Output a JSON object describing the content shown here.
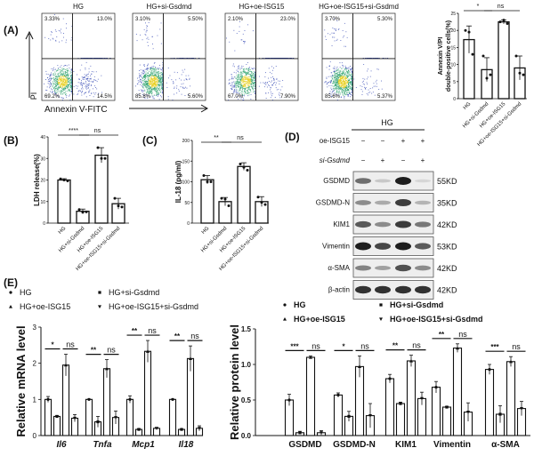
{
  "panels": {
    "A": "(A)",
    "B": "(B)",
    "C": "(C)",
    "D": "(D)",
    "E": "(E)"
  },
  "groups": [
    "HG",
    "HG+si-Gsdmd",
    "HG+oe-ISG15",
    "HG+oe-ISG15+si-Gsdmd"
  ],
  "colors": {
    "dot_low": "#2b3fb0",
    "dot_mid": "#2aa06a",
    "dot_high": "#e8d020",
    "bar_fill": "#ffffff",
    "stroke": "#111111"
  },
  "chart_data": [
    {
      "id": "A-flow",
      "type": "scatter",
      "xlabel": "Annexin V-FITC",
      "ylabel": "PI",
      "plots": [
        {
          "title": "HG",
          "quadrants": {
            "UL": "3.33%",
            "UR": "13.0%",
            "LL": "69.2%",
            "LR": "14.5%"
          },
          "q_values": [
            3.33,
            13.0,
            69.2,
            14.5
          ]
        },
        {
          "title": "HG+si-Gsdmd",
          "quadrants": {
            "UL": "3.10%",
            "UR": "5.50%",
            "LL": "85.8%",
            "LR": "5.60%"
          },
          "q_values": [
            3.1,
            5.5,
            85.8,
            5.6
          ]
        },
        {
          "title": "HG+oe-ISG15",
          "quadrants": {
            "UL": "2.10%",
            "UR": "23.0%",
            "LL": "67.0%",
            "LR": "7.90%"
          },
          "q_values": [
            2.1,
            23.0,
            67.0,
            7.9
          ]
        },
        {
          "title": "HG+oe-ISG15+si-Gsdmd",
          "quadrants": {
            "UL": "3.70%",
            "UR": "5.30%",
            "LL": "85.6%",
            "LR": "5.37%"
          },
          "q_values": [
            3.7,
            5.3,
            85.6,
            5.37
          ]
        }
      ]
    },
    {
      "id": "A-bar",
      "type": "bar",
      "ylabel": [
        "Annexin V/PI",
        "double-positive cells(%)"
      ],
      "ylim": [
        0,
        25
      ],
      "yticks": [
        "0",
        "5",
        "10",
        "15",
        "20",
        "25"
      ],
      "categories": [
        "HG",
        "HG+si-Gsdmd",
        "HG+oe-ISG15",
        "HG+oe-ISG15+si-Gsdmd"
      ],
      "values": [
        17.3,
        8.5,
        22.5,
        9.0
      ],
      "sd": [
        4.0,
        3.5,
        0.6,
        3.5
      ],
      "points": [
        [
          20,
          19.5,
          13
        ],
        [
          12.5,
          6,
          7
        ],
        [
          22.5,
          23,
          22
        ],
        [
          12.5,
          7.5,
          7
        ]
      ],
      "significance": [
        {
          "from": 0,
          "to": 1,
          "label": "*"
        },
        {
          "from": 1,
          "to": 3,
          "label": "ns"
        }
      ]
    },
    {
      "id": "B",
      "type": "bar",
      "ylabel": [
        "LDH release(%)"
      ],
      "ylim": [
        0,
        40
      ],
      "yticks": [
        "0",
        "10",
        "20",
        "30",
        "40"
      ],
      "categories": [
        "HG",
        "HG+si-Gsdmd",
        "HG+oe-ISG15",
        "HG+oe-ISG15+si-Gsdmd"
      ],
      "values": [
        20,
        5.5,
        31.5,
        9
      ],
      "sd": [
        0.6,
        1.0,
        3.5,
        2.5
      ],
      "points": [
        [
          20.5,
          20,
          19.6
        ],
        [
          6.3,
          5,
          5.2
        ],
        [
          35,
          30,
          30
        ],
        [
          11.5,
          8,
          7.5
        ]
      ],
      "significance": [
        {
          "from": 0,
          "to": 1,
          "label": "****"
        },
        {
          "from": 1,
          "to": 3,
          "label": "ns"
        }
      ]
    },
    {
      "id": "C",
      "type": "bar",
      "ylabel": [
        "IL-18 (pg/ml)"
      ],
      "ylim": [
        0,
        200
      ],
      "yticks": [
        "0",
        "50",
        "100",
        "150",
        "200"
      ],
      "categories": [
        "HG",
        "HG+si-Gsdmd",
        "HG+oe-ISG15",
        "HG+oe-ISG15+si-Gsdmd"
      ],
      "values": [
        105,
        52,
        137,
        52
      ],
      "sd": [
        10,
        10,
        9,
        12
      ],
      "points": [
        [
          115,
          100,
          100
        ],
        [
          60,
          58,
          42
        ],
        [
          143,
          135,
          128
        ],
        [
          63,
          50,
          45
        ]
      ],
      "significance": [
        {
          "from": 0,
          "to": 1,
          "label": "**"
        },
        {
          "from": 1,
          "to": 3,
          "label": "ns"
        }
      ]
    },
    {
      "id": "E-mRNA",
      "type": "bar",
      "ylabel": [
        "Relative mRNA level"
      ],
      "ylim": [
        0,
        3
      ],
      "yticks": [
        "0",
        "1",
        "2",
        "3"
      ],
      "categories": [
        "Il6",
        "Tnfa",
        "Mcp1",
        "Il18"
      ],
      "series": [
        {
          "name": "HG",
          "values": [
            1.0,
            1.0,
            1.0,
            1.0
          ],
          "sd": [
            0.08,
            0.01,
            0.1,
            0.01
          ]
        },
        {
          "name": "HG+si-Gsdmd",
          "values": [
            0.53,
            0.38,
            0.17,
            0.17
          ],
          "sd": [
            0.02,
            0.15,
            0.02,
            0.01
          ]
        },
        {
          "name": "HG+oe-ISG15",
          "values": [
            1.95,
            1.85,
            2.33,
            2.13
          ],
          "sd": [
            0.3,
            0.25,
            0.3,
            0.35
          ]
        },
        {
          "name": "HG+oe-ISG15+si-Gsdmd",
          "values": [
            0.48,
            0.5,
            0.2,
            0.2
          ],
          "sd": [
            0.1,
            0.18,
            0.02,
            0.07
          ]
        }
      ],
      "significance": [
        [
          "*",
          "ns"
        ],
        [
          "**",
          "ns"
        ],
        [
          "**",
          "ns"
        ],
        [
          "**",
          "ns"
        ]
      ]
    },
    {
      "id": "E-protein",
      "type": "bar",
      "ylabel": [
        "Relative protein level"
      ],
      "ylim": [
        0,
        1.5
      ],
      "yticks": [
        "0.0",
        "0.5",
        "1.0",
        "1.5"
      ],
      "categories": [
        "GSDMD",
        "GSDMD-N",
        "KIM1",
        "Vimentin",
        "α-SMA"
      ],
      "series": [
        {
          "name": "HG",
          "values": [
            0.5,
            0.57,
            0.8,
            0.68,
            0.93
          ],
          "sd": [
            0.08,
            0.03,
            0.06,
            0.08,
            0.07
          ]
        },
        {
          "name": "HG+si-Gsdmd",
          "values": [
            0.04,
            0.27,
            0.45,
            0.4,
            0.3
          ],
          "sd": [
            0.02,
            0.07,
            0.02,
            0.01,
            0.12
          ]
        },
        {
          "name": "HG+oe-ISG15",
          "values": [
            1.1,
            0.97,
            1.05,
            1.23,
            1.04
          ],
          "sd": [
            0.02,
            0.15,
            0.08,
            0.06,
            0.07
          ]
        },
        {
          "name": "HG+oe-ISG15+si-Gsdmd",
          "values": [
            0.04,
            0.28,
            0.52,
            0.33,
            0.38
          ],
          "sd": [
            0.03,
            0.17,
            0.09,
            0.13,
            0.1
          ]
        }
      ],
      "significance": [
        [
          "***",
          "ns"
        ],
        [
          "*",
          "ns"
        ],
        [
          "**",
          "ns"
        ],
        [
          "**",
          "ns"
        ],
        [
          "***",
          "ns"
        ]
      ]
    }
  ],
  "western": {
    "header": "HG",
    "conditions": [
      {
        "label": "oe-ISG15",
        "signs": [
          "−",
          "−",
          "+",
          "+"
        ]
      },
      {
        "label": "si-Gsdmd",
        "signs": [
          "−",
          "+",
          "−",
          "+"
        ]
      }
    ],
    "rows": [
      {
        "protein": "GSDMD",
        "size": "55KD",
        "band_intensity": [
          0.6,
          0.15,
          1.0,
          0.08
        ]
      },
      {
        "protein": "GSDMD-N",
        "size": "35KD",
        "band_intensity": [
          0.45,
          0.3,
          0.85,
          0.25
        ]
      },
      {
        "protein": "KIM1",
        "size": "42KD",
        "band_intensity": [
          0.7,
          0.45,
          0.85,
          0.55
        ]
      },
      {
        "protein": "Vimentin",
        "size": "53KD",
        "band_intensity": [
          1.0,
          0.8,
          1.0,
          0.7
        ]
      },
      {
        "protein": "α-SMA",
        "size": "42KD",
        "band_intensity": [
          0.5,
          0.35,
          0.75,
          0.45
        ]
      },
      {
        "protein": "β-actin",
        "size": "42KD",
        "band_intensity": [
          0.9,
          0.9,
          0.9,
          0.9
        ]
      }
    ]
  }
}
